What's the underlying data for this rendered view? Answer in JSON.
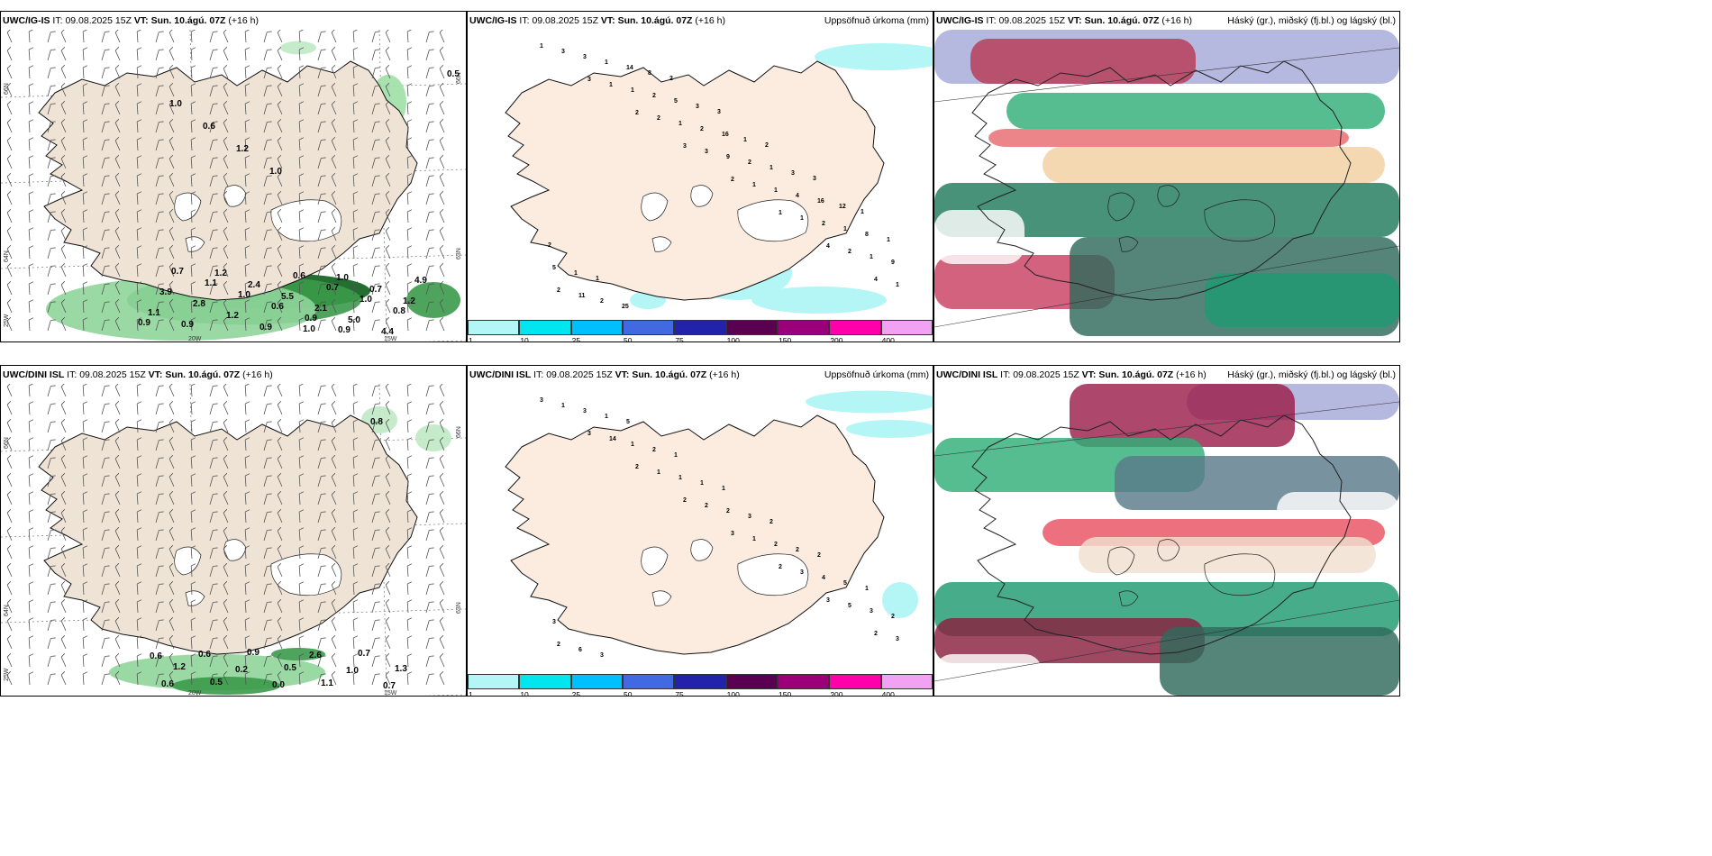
{
  "panels": [
    {
      "model": "UWC/IG-IS",
      "it_label": "IT:",
      "it": "09.08.2025 15Z",
      "vt_label": "VT:",
      "vt": "Sun. 10.ágú. 07Z",
      "lead": "(+16 h)",
      "right": ""
    },
    {
      "model": "UWC/IG-IS",
      "it_label": "IT:",
      "it": "09.08.2025 15Z",
      "vt_label": "VT:",
      "vt": "Sun. 10.ágú. 07Z",
      "lead": "(+16 h)",
      "right": "Uppsöfnuð úrkoma (mm)"
    },
    {
      "model": "UWC/IG-IS",
      "it_label": "IT:",
      "it": "09.08.2025 15Z",
      "vt_label": "VT:",
      "vt": "Sun. 10.ágú. 07Z",
      "lead": "(+16 h)",
      "right": "Háský (gr.), miðský (fj.bl.) og lágský (bl.)"
    },
    {
      "model": "UWC/DINI ISL",
      "it_label": "IT:",
      "it": "09.08.2025 15Z",
      "vt_label": "VT:",
      "vt": "Sun. 10.ágú. 07Z",
      "lead": "(+16 h)",
      "right": ""
    },
    {
      "model": "UWC/DINI ISL",
      "it_label": "IT:",
      "it": "09.08.2025 15Z",
      "vt_label": "VT:",
      "vt": "Sun. 10.ágú. 07Z",
      "lead": "(+16 h)",
      "right": "Uppsöfnuð úrkoma (mm)"
    },
    {
      "model": "UWC/DINI ISL",
      "it_label": "IT:",
      "it": "09.08.2025 15Z",
      "vt_label": "VT:",
      "vt": "Sun. 10.ágú. 07Z",
      "lead": "(+16 h)",
      "right": "Háský (gr.), miðský (fj.bl.) og lágský (bl.)"
    }
  ],
  "axis_labels": {
    "lat66": "66N",
    "lat64": "64N",
    "lat63": "63N",
    "lon20": "20W",
    "lon15": "15W",
    "lon25": "25W"
  },
  "colorbar": {
    "ticks": [
      "1",
      "10",
      "25",
      "50",
      "75",
      "100",
      "150",
      "200",
      "400"
    ],
    "colors": [
      "#b4f5f5",
      "#00e5ee",
      "#00bfff",
      "#4169e1",
      "#2222aa",
      "#5a0050",
      "#9b007a",
      "#ff00aa",
      "#f2a2f2"
    ]
  },
  "precip_labels": {
    "top": [
      "0.5",
      "1.0",
      "0.6",
      "1.2",
      "1.0",
      "1.0",
      "1.0",
      "0.7",
      "1.2",
      "1.1",
      "0.9",
      "1.2",
      "2.4",
      "5.5",
      "2.1",
      "5.0",
      "4.4",
      "4.9",
      "3.9",
      "2.8",
      "1.2",
      "0.9",
      "0.6",
      "0.7",
      "1.0",
      "0.8",
      "0.9",
      "0.7",
      "1.1",
      "1.0",
      "0.6",
      "0.9",
      "0.9"
    ],
    "bottom": [
      "0.8",
      "1.2",
      "0.5",
      "0.9",
      "0.5",
      "1.1",
      "0.7",
      "1.3",
      "0.6",
      "0.6",
      "0.2",
      "0.0",
      "2.6",
      "1.0",
      "0.7",
      "0.6"
    ]
  },
  "accum_labels": {
    "top": [
      "1",
      "3",
      "2",
      "3",
      "2",
      "1",
      "4",
      "4",
      "3",
      "1",
      "2",
      "3",
      "1",
      "1",
      "2",
      "1",
      "3",
      "1",
      "1",
      "9",
      "1",
      "2",
      "1",
      "2",
      "1",
      "2",
      "2",
      "2",
      "4",
      "1",
      "9",
      "11",
      "14",
      "5",
      "16",
      "1",
      "16",
      "8",
      "5",
      "2",
      "8",
      "3",
      "1",
      "3",
      "12",
      "1",
      "1",
      "25",
      "2",
      "3",
      "2",
      "3",
      "1",
      "2",
      "1"
    ],
    "bottom": [
      "3",
      "3",
      "2",
      "2",
      "3",
      "2",
      "3",
      "2",
      "1",
      "14",
      "1",
      "2",
      "1",
      "3",
      "5",
      "3",
      "3",
      "1",
      "1",
      "2",
      "2",
      "4",
      "3",
      "2",
      "1",
      "2",
      "1",
      "3",
      "2",
      "5",
      "2",
      "6",
      "5",
      "1",
      "1",
      "2",
      "2",
      "1",
      "3",
      "3"
    ]
  }
}
